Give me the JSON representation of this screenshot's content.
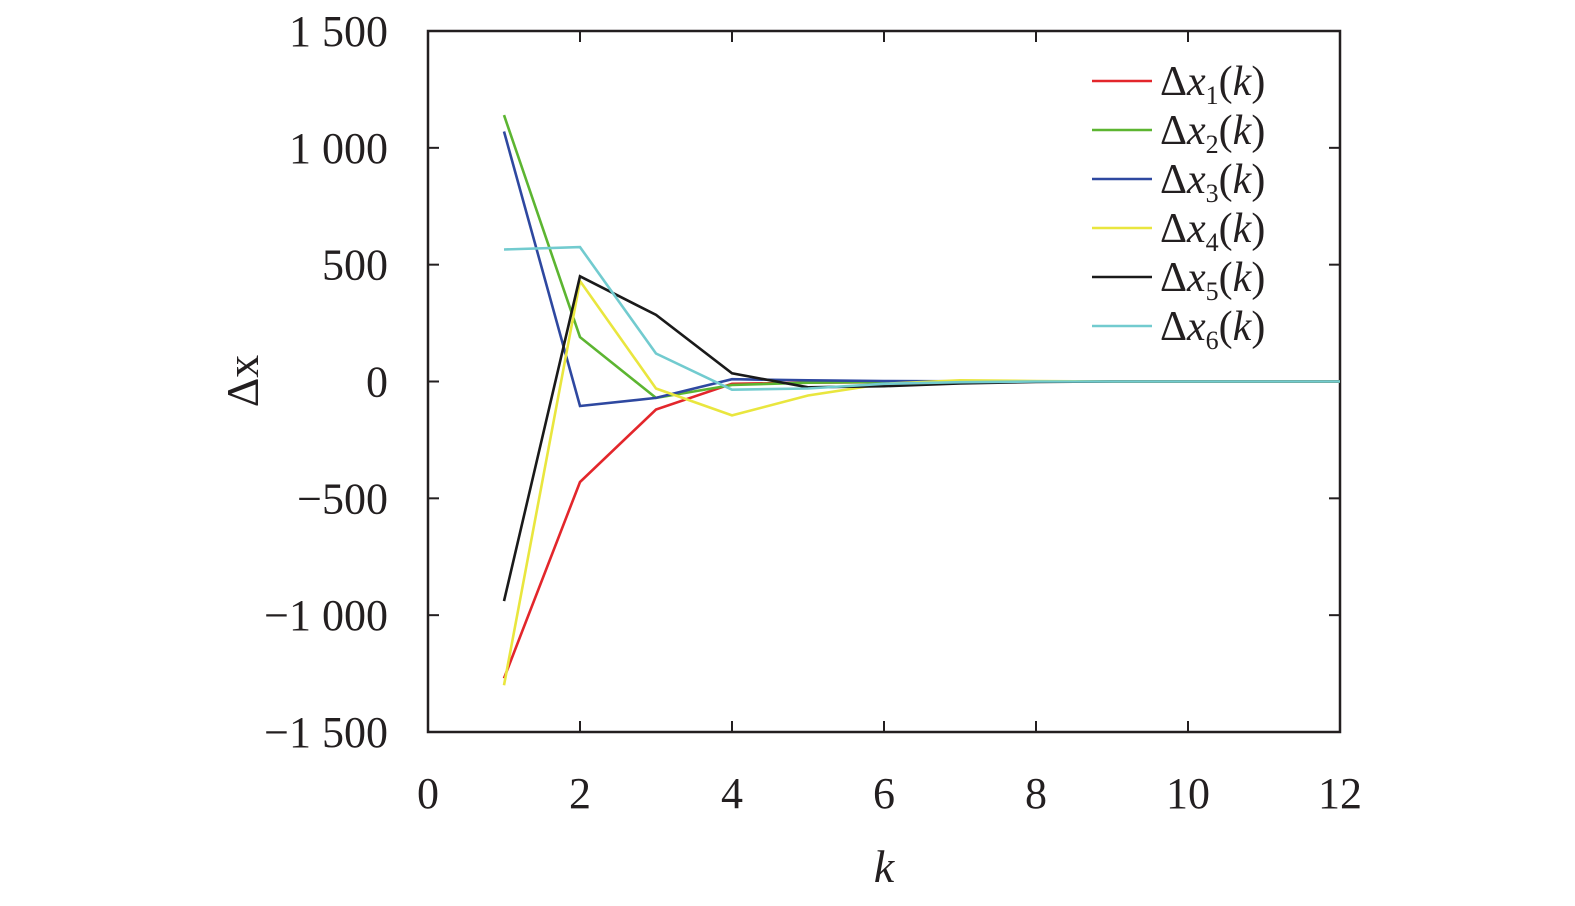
{
  "chart_data": {
    "type": "line",
    "xlabel": "k",
    "ylabel": "Δx",
    "xlim": [
      0,
      12
    ],
    "ylim": [
      -1500,
      1500
    ],
    "x_ticks": [
      0,
      2,
      4,
      6,
      8,
      10,
      12
    ],
    "y_ticks": [
      1500,
      1000,
      500,
      0,
      -500,
      -1000,
      -1500
    ],
    "x_tick_labels": [
      "0",
      "2",
      "4",
      "6",
      "8",
      "10",
      "12"
    ],
    "y_tick_labels": [
      "1 500",
      "1 000",
      "500",
      "0",
      "−500",
      "−1 000",
      "−1 500"
    ],
    "grid": false,
    "legend_position": "top-right",
    "x": [
      1,
      2,
      3,
      4,
      5,
      6,
      7,
      8,
      9,
      10,
      11,
      12
    ],
    "series": [
      {
        "legend_base": "Δx",
        "subscript": "1",
        "legend_suffix": "(k)",
        "color": "#e3262b",
        "values": [
          -1270,
          -430,
          -120,
          -10,
          -5,
          -3,
          -1,
          0,
          0,
          0,
          0,
          0
        ]
      },
      {
        "legend_base": "Δx",
        "subscript": "2",
        "legend_suffix": "(k)",
        "color": "#5cb531",
        "values": [
          1140,
          190,
          -70,
          -15,
          -5,
          -2,
          -1,
          0,
          0,
          0,
          0,
          0
        ]
      },
      {
        "legend_base": "Δx",
        "subscript": "3",
        "legend_suffix": "(k)",
        "color": "#2e48a0",
        "values": [
          1070,
          -105,
          -70,
          10,
          5,
          2,
          1,
          0,
          0,
          0,
          0,
          0
        ]
      },
      {
        "legend_base": "Δx",
        "subscript": "4",
        "legend_suffix": "(k)",
        "color": "#e9e63e",
        "values": [
          -1300,
          430,
          -30,
          -145,
          -60,
          -10,
          5,
          2,
          0,
          0,
          0,
          0
        ]
      },
      {
        "legend_base": "Δx",
        "subscript": "5",
        "legend_suffix": "(k)",
        "color": "#1a1a1a",
        "values": [
          -940,
          450,
          285,
          35,
          -25,
          -20,
          -8,
          -2,
          0,
          0,
          0,
          0
        ]
      },
      {
        "legend_base": "Δx",
        "subscript": "6",
        "legend_suffix": "(k)",
        "color": "#72cbcf",
        "values": [
          565,
          575,
          120,
          -35,
          -30,
          -10,
          -3,
          0,
          0,
          0,
          0,
          0
        ]
      }
    ]
  }
}
